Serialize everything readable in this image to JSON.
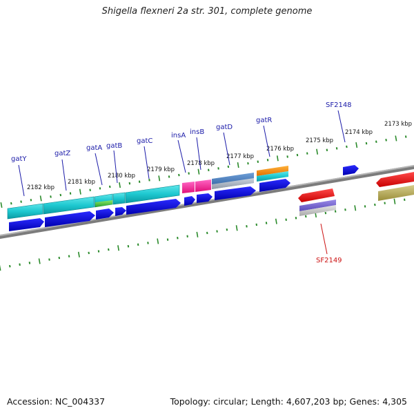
{
  "title": "Shigella flexneri 2a str. 301, complete genome",
  "footer": {
    "accession": "Accession: NC_004337",
    "summary": "Topology: circular; Length: 4,607,203 bp; Genes: 4,305"
  },
  "colors": {
    "backbone": "#8a8a8a",
    "tick": "#2a8a2a",
    "gene_label": "#1a1aa8",
    "highlight_label": "#cc1111"
  },
  "scale_labels": [
    "2182 kbp",
    "2181 kbp",
    "2180 kbp",
    "2179 kbp",
    "2178 kbp",
    "2177 kbp",
    "2176 kbp",
    "2175 kbp",
    "2174 kbp",
    "2173 kbp"
  ],
  "gene_labels": [
    "gatY",
    "gatZ",
    "gatA",
    "gatB",
    "gatC",
    "insA",
    "insB",
    "gatD",
    "gatR",
    "SF2148",
    "SF2149"
  ]
}
